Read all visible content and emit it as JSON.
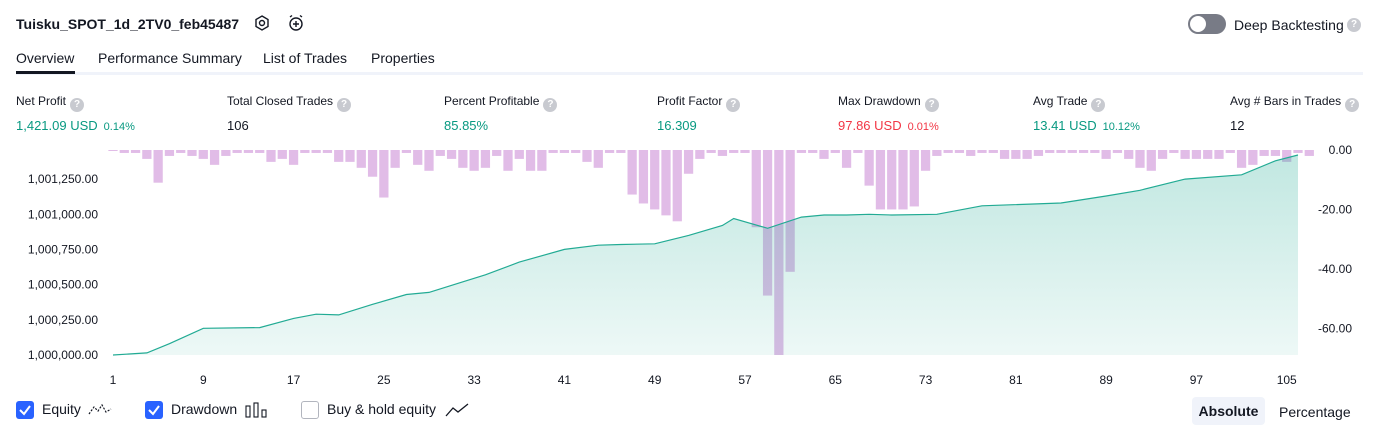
{
  "header": {
    "title": "Tuisku_SPOT_1d_2TV0_feb45487",
    "settings_icon": "gear-icon",
    "alert_icon": "add-alert-icon",
    "deep_backtesting_label": "Deep Backtesting",
    "deep_backtesting_on": false
  },
  "tabs": [
    {
      "label": "Overview",
      "active": true
    },
    {
      "label": "Performance Summary",
      "active": false
    },
    {
      "label": "List of Trades",
      "active": false
    },
    {
      "label": "Properties",
      "active": false
    }
  ],
  "metrics": [
    {
      "label": "Net Profit",
      "value": "1,421.09 USD",
      "pct": "0.14%",
      "color": "#089981"
    },
    {
      "label": "Total Closed Trades",
      "value": "106",
      "pct": "",
      "color": "#131722"
    },
    {
      "label": "Percent Profitable",
      "value": "85.85%",
      "pct": "",
      "color": "#089981"
    },
    {
      "label": "Profit Factor",
      "value": "16.309",
      "pct": "",
      "color": "#089981"
    },
    {
      "label": "Max Drawdown",
      "value": "97.86 USD",
      "pct": "0.01%",
      "color": "#f23645"
    },
    {
      "label": "Avg Trade",
      "value": "13.41 USD",
      "pct": "10.12%",
      "color": "#089981"
    },
    {
      "label": "Avg # Bars in Trades",
      "value": "12",
      "pct": "",
      "color": "#131722"
    }
  ],
  "chart_data": {
    "type": "area",
    "x_ticks": [
      "1",
      "9",
      "17",
      "25",
      "33",
      "41",
      "49",
      "57",
      "65",
      "73",
      "81",
      "89",
      "97",
      "105"
    ],
    "y_left_ticks": [
      "1,000,000.00",
      "1,000,250.00",
      "1,000,500.00",
      "1,000,750.00",
      "1,001,000.00",
      "1,001,250.00"
    ],
    "y_right_ticks": [
      "0.00",
      "-20.00",
      "-40.00",
      "-60.00"
    ],
    "y_left_range": [
      1000000,
      1001421
    ],
    "y_right_range": [
      -69,
      0
    ],
    "equity": {
      "name": "Equity",
      "color": "#22ab94",
      "points": [
        [
          1,
          1000000
        ],
        [
          4,
          1000015
        ],
        [
          6,
          1000080
        ],
        [
          9,
          1000190
        ],
        [
          14,
          1000195
        ],
        [
          17,
          1000260
        ],
        [
          19,
          1000290
        ],
        [
          21,
          1000285
        ],
        [
          24,
          1000360
        ],
        [
          27,
          1000430
        ],
        [
          29,
          1000445
        ],
        [
          32,
          1000520
        ],
        [
          34,
          1000570
        ],
        [
          37,
          1000660
        ],
        [
          41,
          1000750
        ],
        [
          44,
          1000780
        ],
        [
          46,
          1000785
        ],
        [
          49,
          1000790
        ],
        [
          52,
          1000850
        ],
        [
          55,
          1000920
        ],
        [
          56,
          1000970
        ],
        [
          59,
          1000900
        ],
        [
          62,
          1000980
        ],
        [
          64,
          1000995
        ],
        [
          66,
          1000995
        ],
        [
          68,
          1001000
        ],
        [
          70,
          1000995
        ],
        [
          74,
          1001000
        ],
        [
          78,
          1001060
        ],
        [
          85,
          1001080
        ],
        [
          89,
          1001130
        ],
        [
          92,
          1001170
        ],
        [
          96,
          1001250
        ],
        [
          101,
          1001280
        ],
        [
          104,
          1001380
        ],
        [
          106,
          1001421
        ]
      ]
    },
    "drawdown": {
      "name": "Drawdown",
      "color": "#ce93d8",
      "values": [
        0,
        -1,
        -1,
        -3,
        -11,
        -2,
        -1,
        -2,
        -3,
        -5,
        -2,
        -1,
        -1,
        -1,
        -4,
        -3,
        -5,
        -1,
        -1,
        -1,
        -4,
        -4,
        -6,
        -9,
        -16,
        -6,
        -1,
        -5,
        -7,
        -2,
        -3,
        -6,
        -7,
        -6,
        -2,
        -7,
        -3,
        -7,
        -7,
        -1,
        -1,
        -1,
        -4,
        -6,
        -1,
        -1,
        -15,
        -18,
        -20,
        -22,
        -24,
        -8,
        -3,
        -1,
        -2,
        -1,
        -1,
        -26,
        -49,
        -69,
        -41,
        -1,
        -1,
        -3,
        -1,
        -6,
        -1,
        -12,
        -20,
        -20,
        -20,
        -19,
        -7,
        -2,
        -1,
        -1,
        -2,
        -1,
        -1,
        -3,
        -3,
        -3,
        -2,
        -1,
        -1,
        -1,
        -1,
        -1,
        -3,
        -1,
        -3,
        -6,
        -7,
        -3,
        -1,
        -3,
        -3,
        -3,
        -3,
        -1,
        -6,
        -5,
        -2,
        -2,
        -4,
        -1,
        -2
      ]
    }
  },
  "legend": {
    "equity": {
      "label": "Equity",
      "checked": true,
      "icon": "equity-line-icon"
    },
    "drawdown": {
      "label": "Drawdown",
      "checked": true,
      "icon": "bar-chart-icon"
    },
    "buyhold": {
      "label": "Buy & hold equity",
      "checked": false,
      "icon": "trend-line-icon"
    }
  },
  "scale_toggle": {
    "absolute": "Absolute",
    "percentage": "Percentage",
    "selected": "Absolute"
  }
}
